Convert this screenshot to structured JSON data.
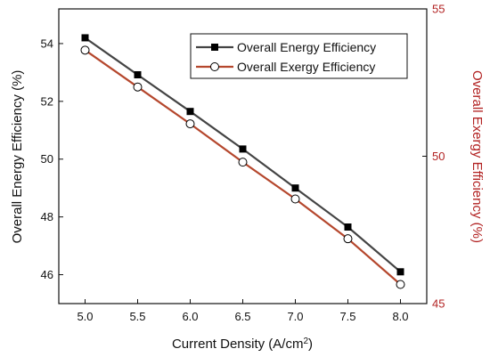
{
  "chart_data": {
    "type": "line",
    "title": "",
    "x": [
      5.0,
      5.5,
      6.0,
      6.5,
      7.0,
      7.5,
      8.0
    ],
    "x_ticks": [
      "5.0",
      "5.5",
      "6.0",
      "6.5",
      "7.0",
      "7.5",
      "8.0"
    ],
    "xlim": [
      4.75,
      8.25
    ],
    "xlabel_main": "Current Density (A/cm",
    "xlabel_sup": "2",
    "xlabel_tail": ")",
    "y_left": {
      "label": "Overall Energy Efficiency (%)",
      "lim": [
        45.0,
        55.2
      ],
      "ticks": [
        46,
        48,
        50,
        52,
        54
      ],
      "tick_labels": [
        "46",
        "48",
        "50",
        "52",
        "54"
      ],
      "color": "#111111"
    },
    "y_right": {
      "label": "Overall Exergy Efficiency (%)",
      "lim": [
        45.0,
        55.0
      ],
      "ticks": [
        45,
        50,
        55
      ],
      "tick_labels": [
        "45",
        "50",
        "55"
      ],
      "color": "#b22222"
    },
    "series": [
      {
        "name": "Overall Energy Efficiency",
        "axis": "left",
        "line_color": "#444444",
        "marker": "filled-square",
        "marker_color": "#000000",
        "values": [
          54.2,
          52.92,
          51.65,
          50.35,
          49.0,
          47.65,
          46.1
        ]
      },
      {
        "name": "Overall Exergy Efficiency",
        "axis": "right",
        "line_color": "#b5472d",
        "marker": "hollow-circle",
        "marker_color": "#000000",
        "values": [
          53.6,
          52.35,
          51.1,
          49.8,
          48.55,
          47.2,
          45.65
        ]
      }
    ],
    "legend_position": "top-right",
    "grid": false
  }
}
